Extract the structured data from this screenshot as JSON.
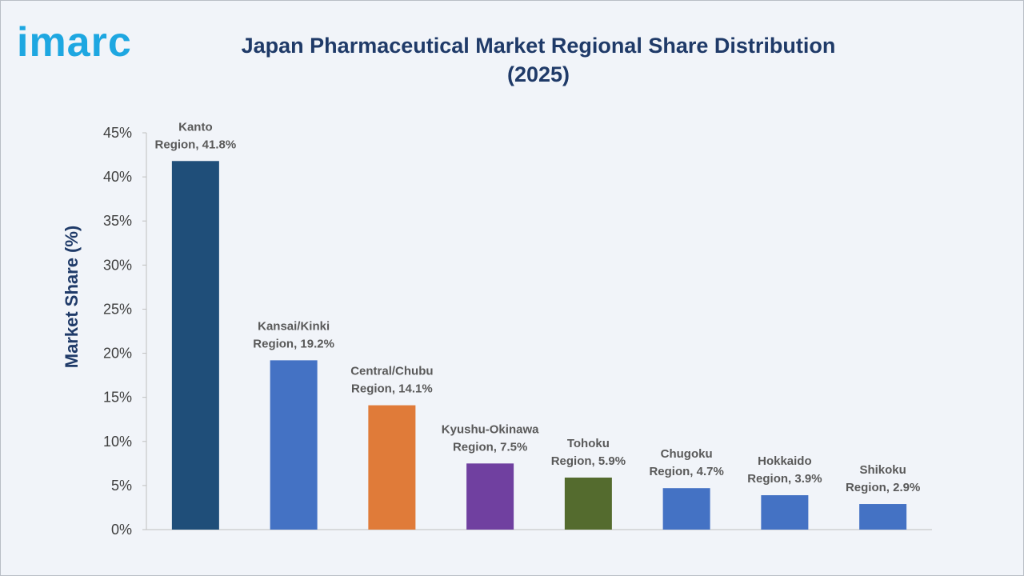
{
  "logo": {
    "text": "imarc"
  },
  "title_lines": [
    "Japan Pharmaceutical Market Regional Share Distribution",
    "(2025)"
  ],
  "chart_data": {
    "type": "bar",
    "title": "Japan Pharmaceutical Market Regional Share Distribution (2025)",
    "ylabel": "Market Share (%)",
    "xlabel": "",
    "ylim": [
      0,
      45
    ],
    "yticks": [
      "0%",
      "5%",
      "10%",
      "15%",
      "20%",
      "25%",
      "30%",
      "35%",
      "40%",
      "45%"
    ],
    "grid": false,
    "categories": [
      "Kanto Region",
      "Kansai/Kinki Region",
      "Central/Chubu Region",
      "Kyushu-Okinawa Region",
      "Tohoku Region",
      "Chugoku Region",
      "Hokkaido Region",
      "Shikoku Region"
    ],
    "values": [
      41.8,
      19.2,
      14.1,
      7.5,
      5.9,
      4.7,
      3.9,
      2.9
    ],
    "labels": [
      [
        "Kanto",
        "Region, 41.8%"
      ],
      [
        "Kansai/Kinki",
        "Region, 19.2%"
      ],
      [
        "Central/Chubu",
        "Region, 14.1%"
      ],
      [
        "Kyushu-Okinawa",
        "Region, 7.5%"
      ],
      [
        "Tohoku",
        "Region, 5.9%"
      ],
      [
        "Chugoku",
        "Region, 4.7%"
      ],
      [
        "Hokkaido",
        "Region, 3.9%"
      ],
      [
        "Shikoku",
        "Region, 2.9%"
      ]
    ],
    "colors": [
      "#1f4e79",
      "#4472c4",
      "#e07b39",
      "#7040a0",
      "#546b2e",
      "#4472c4",
      "#4472c4",
      "#4472c4"
    ]
  }
}
